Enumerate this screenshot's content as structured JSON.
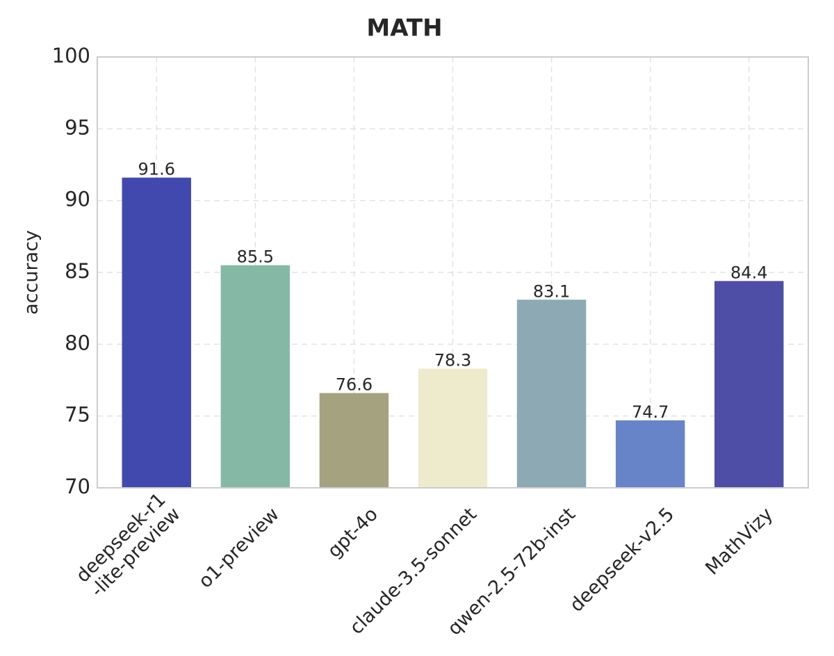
{
  "chart_data": {
    "type": "bar",
    "title": "MATH",
    "y_label": "accuracy",
    "categories": [
      "deepseek-r1\n-lite-preview",
      "o1-preview",
      "gpt-4o",
      "claude-3.5-sonnet",
      "qwen-2.5-72b-inst",
      "deepseek-v2.5",
      "MathVizy"
    ],
    "values": [
      91.6,
      85.5,
      76.6,
      78.3,
      83.1,
      74.7,
      84.4
    ],
    "colors": [
      "#4249ae",
      "#86b9a5",
      "#a5a27f",
      "#eeebcc",
      "#8ca9b4",
      "#6884c8",
      "#4f4ea6"
    ],
    "ylim": [
      70,
      100
    ],
    "yticks": [
      70,
      75,
      80,
      85,
      90,
      95,
      100
    ],
    "grid": true
  }
}
